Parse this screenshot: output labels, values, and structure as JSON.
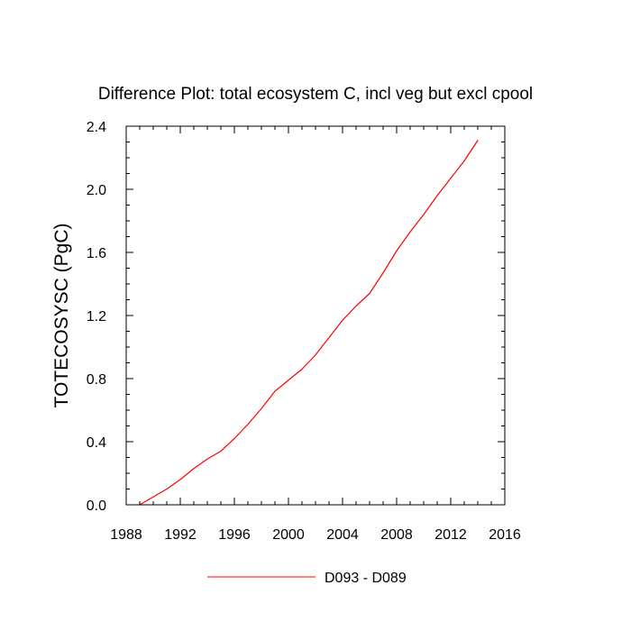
{
  "chart_data": {
    "type": "line",
    "title": "Difference Plot: total ecosystem C, incl veg but excl cpool",
    "ylabel": "TOTECOSYSC  (PgC)",
    "xlabel": "",
    "xlim": [
      1988,
      2016
    ],
    "ylim": [
      0.0,
      2.4
    ],
    "x_ticks": [
      "1988",
      "1992",
      "1996",
      "2000",
      "2004",
      "2008",
      "2012",
      "2016"
    ],
    "y_ticks": [
      "0.0",
      "0.4",
      "0.8",
      "1.2",
      "1.6",
      "2.0",
      "2.4"
    ],
    "x_tick_values": [
      1988,
      1992,
      1996,
      2000,
      2004,
      2008,
      2012,
      2016
    ],
    "y_tick_values": [
      0.0,
      0.4,
      0.8,
      1.2,
      1.6,
      2.0,
      2.4
    ],
    "grid": false,
    "legend_position": "bottom-center",
    "series": [
      {
        "name": "D093 - D089",
        "color": "#ff0000",
        "x": [
          1989,
          1990,
          1991,
          1992,
          1993,
          1994,
          1995,
          1996,
          1997,
          1998,
          1999,
          2000,
          2001,
          2002,
          2003,
          2004,
          2005,
          2006,
          2007,
          2008,
          2009,
          2010,
          2011,
          2012,
          2013,
          2014
        ],
        "y": [
          0.0,
          0.05,
          0.1,
          0.16,
          0.23,
          0.29,
          0.34,
          0.42,
          0.51,
          0.61,
          0.72,
          0.79,
          0.86,
          0.95,
          1.06,
          1.17,
          1.26,
          1.34,
          1.47,
          1.61,
          1.73,
          1.84,
          1.96,
          2.07,
          2.18,
          2.31
        ]
      }
    ]
  }
}
